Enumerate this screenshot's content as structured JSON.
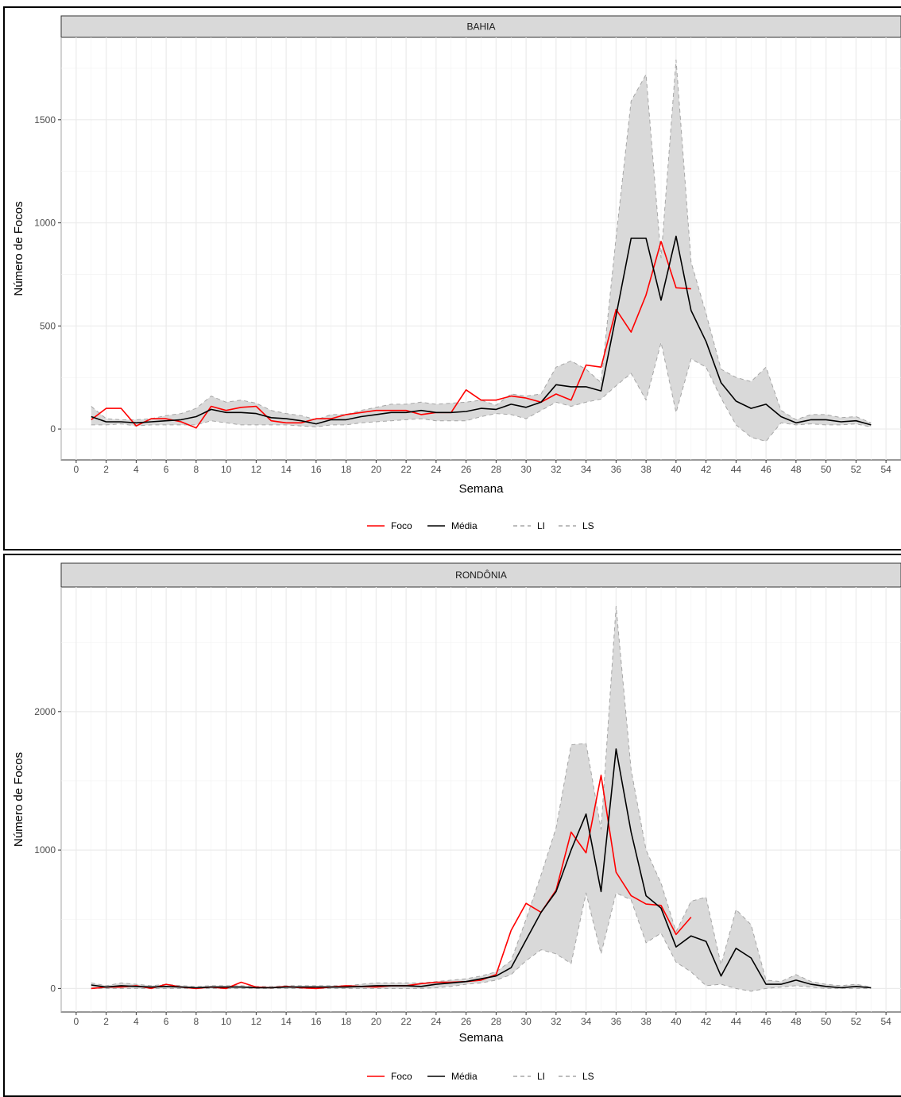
{
  "chart_data": [
    {
      "type": "line",
      "title": "BAHIA",
      "xlabel": "Semana",
      "ylabel": "Número de Focos",
      "xlim": [
        -1,
        55
      ],
      "ylim": [
        -150,
        1900
      ],
      "x_ticks": [
        0,
        2,
        4,
        6,
        8,
        10,
        12,
        14,
        16,
        18,
        20,
        22,
        24,
        26,
        28,
        30,
        32,
        34,
        36,
        38,
        40,
        42,
        44,
        46,
        48,
        50,
        52,
        54
      ],
      "y_ticks": [
        0,
        500,
        1000,
        1500
      ],
      "grid": true,
      "legend_position": "bottom",
      "legend": [
        "Foco",
        "Média",
        "LI",
        "LS"
      ],
      "colors": {
        "Foco": "#ff0000",
        "Média": "#000000",
        "band": "#d9d9d9",
        "band_line": "#a6a6a6"
      },
      "series": [
        {
          "name": "Foco",
          "x": [
            1,
            2,
            3,
            4,
            5,
            6,
            7,
            8,
            9,
            10,
            11,
            12,
            13,
            14,
            15,
            16,
            17,
            18,
            19,
            20,
            21,
            22,
            23,
            24,
            25,
            26,
            27,
            28,
            29,
            30,
            31,
            32,
            33,
            34,
            35,
            36,
            37,
            38,
            39,
            40,
            41
          ],
          "values": [
            45,
            100,
            100,
            15,
            50,
            50,
            35,
            5,
            110,
            90,
            105,
            110,
            40,
            30,
            30,
            50,
            50,
            70,
            80,
            90,
            90,
            90,
            70,
            80,
            80,
            190,
            140,
            140,
            160,
            150,
            130,
            170,
            140,
            310,
            300,
            580,
            470,
            650,
            910,
            685,
            680
          ]
        },
        {
          "name": "Média",
          "x": [
            1,
            2,
            3,
            4,
            5,
            6,
            7,
            8,
            9,
            10,
            11,
            12,
            13,
            14,
            15,
            16,
            17,
            18,
            19,
            20,
            21,
            22,
            23,
            24,
            25,
            26,
            27,
            28,
            29,
            30,
            31,
            32,
            33,
            34,
            35,
            36,
            37,
            38,
            39,
            40,
            41,
            42,
            43,
            44,
            45,
            46,
            47,
            48,
            49,
            50,
            51,
            52,
            53
          ],
          "values": [
            60,
            35,
            35,
            30,
            35,
            40,
            45,
            60,
            95,
            80,
            80,
            75,
            55,
            50,
            40,
            25,
            45,
            45,
            60,
            70,
            80,
            80,
            90,
            80,
            80,
            85,
            100,
            95,
            120,
            105,
            130,
            215,
            205,
            205,
            185,
            550,
            925,
            925,
            625,
            935,
            575,
            425,
            225,
            135,
            100,
            120,
            60,
            30,
            45,
            45,
            35,
            40,
            20
          ]
        },
        {
          "name": "LI",
          "x": [
            1,
            2,
            3,
            4,
            5,
            6,
            7,
            8,
            9,
            10,
            11,
            12,
            13,
            14,
            15,
            16,
            17,
            18,
            19,
            20,
            21,
            22,
            23,
            24,
            25,
            26,
            27,
            28,
            29,
            30,
            31,
            32,
            33,
            34,
            35,
            36,
            37,
            38,
            39,
            40,
            41,
            42,
            43,
            44,
            45,
            46,
            47,
            48,
            49,
            50,
            51,
            52,
            53
          ],
          "values": [
            20,
            20,
            25,
            15,
            20,
            20,
            20,
            20,
            40,
            30,
            20,
            20,
            20,
            20,
            15,
            10,
            20,
            20,
            30,
            35,
            40,
            45,
            50,
            40,
            40,
            40,
            60,
            75,
            70,
            50,
            90,
            130,
            110,
            130,
            145,
            210,
            270,
            140,
            420,
            80,
            340,
            300,
            150,
            20,
            -40,
            -60,
            30,
            20,
            25,
            20,
            20,
            25,
            10
          ]
        },
        {
          "name": "LS",
          "x": [
            1,
            2,
            3,
            4,
            5,
            6,
            7,
            8,
            9,
            10,
            11,
            12,
            13,
            14,
            15,
            16,
            17,
            18,
            19,
            20,
            21,
            22,
            23,
            24,
            25,
            26,
            27,
            28,
            29,
            30,
            31,
            32,
            33,
            34,
            35,
            36,
            37,
            38,
            39,
            40,
            41,
            42,
            43,
            44,
            45,
            46,
            47,
            48,
            49,
            50,
            51,
            52,
            53
          ],
          "values": [
            110,
            50,
            45,
            45,
            50,
            65,
            75,
            100,
            160,
            130,
            140,
            125,
            90,
            75,
            65,
            45,
            70,
            70,
            90,
            105,
            120,
            120,
            130,
            120,
            125,
            130,
            140,
            115,
            170,
            160,
            170,
            300,
            330,
            290,
            225,
            930,
            1590,
            1720,
            830,
            1790,
            810,
            560,
            290,
            250,
            230,
            300,
            90,
            45,
            70,
            70,
            55,
            60,
            30
          ]
        }
      ]
    },
    {
      "type": "line",
      "title": "RONDÔNIA",
      "xlabel": "Semana",
      "ylabel": "Número de Focos",
      "xlim": [
        -1,
        55
      ],
      "ylim": [
        -170,
        2900
      ],
      "x_ticks": [
        0,
        2,
        4,
        6,
        8,
        10,
        12,
        14,
        16,
        18,
        20,
        22,
        24,
        26,
        28,
        30,
        32,
        34,
        36,
        38,
        40,
        42,
        44,
        46,
        48,
        50,
        52,
        54
      ],
      "y_ticks": [
        0,
        1000,
        2000
      ],
      "grid": true,
      "legend_position": "bottom",
      "legend": [
        "Foco",
        "Média",
        "LI",
        "LS"
      ],
      "colors": {
        "Foco": "#ff0000",
        "Média": "#000000",
        "band": "#d9d9d9",
        "band_line": "#a6a6a6"
      },
      "series": [
        {
          "name": "Foco",
          "x": [
            1,
            2,
            3,
            4,
            5,
            6,
            7,
            8,
            9,
            10,
            11,
            12,
            13,
            14,
            15,
            16,
            17,
            18,
            19,
            20,
            21,
            22,
            23,
            24,
            25,
            26,
            27,
            28,
            29,
            30,
            31,
            32,
            33,
            34,
            35,
            36,
            37,
            38,
            39,
            40,
            41
          ],
          "values": [
            0,
            10,
            10,
            20,
            0,
            30,
            10,
            0,
            10,
            0,
            45,
            10,
            5,
            15,
            5,
            0,
            10,
            20,
            15,
            10,
            20,
            20,
            35,
            45,
            45,
            50,
            60,
            100,
            420,
            615,
            550,
            710,
            1130,
            980,
            1540,
            840,
            670,
            610,
            600,
            390,
            515
          ]
        },
        {
          "name": "Média",
          "x": [
            1,
            2,
            3,
            4,
            5,
            6,
            7,
            8,
            9,
            10,
            11,
            12,
            13,
            14,
            15,
            16,
            17,
            18,
            19,
            20,
            21,
            22,
            23,
            24,
            25,
            26,
            27,
            28,
            29,
            30,
            31,
            32,
            33,
            34,
            35,
            36,
            37,
            38,
            39,
            40,
            41,
            42,
            43,
            44,
            45,
            46,
            47,
            48,
            49,
            50,
            51,
            52,
            53
          ],
          "values": [
            25,
            10,
            20,
            15,
            10,
            15,
            10,
            5,
            10,
            10,
            10,
            5,
            5,
            10,
            10,
            10,
            10,
            10,
            15,
            20,
            20,
            20,
            15,
            30,
            40,
            50,
            70,
            90,
            150,
            350,
            550,
            700,
            1000,
            1260,
            700,
            1730,
            1130,
            670,
            580,
            300,
            380,
            340,
            90,
            290,
            220,
            30,
            30,
            60,
            30,
            15,
            5,
            15,
            5
          ]
        },
        {
          "name": "LI",
          "x": [
            1,
            2,
            3,
            4,
            5,
            6,
            7,
            8,
            9,
            10,
            11,
            12,
            13,
            14,
            15,
            16,
            17,
            18,
            19,
            20,
            21,
            22,
            23,
            24,
            25,
            26,
            27,
            28,
            29,
            30,
            31,
            32,
            33,
            34,
            35,
            36,
            37,
            38,
            39,
            40,
            41,
            42,
            43,
            44,
            45,
            46,
            47,
            48,
            49,
            50,
            51,
            52,
            53
          ],
          "values": [
            0,
            0,
            0,
            0,
            0,
            0,
            0,
            0,
            0,
            0,
            0,
            0,
            0,
            0,
            0,
            0,
            0,
            0,
            0,
            0,
            0,
            0,
            0,
            5,
            15,
            30,
            40,
            60,
            100,
            200,
            280,
            250,
            180,
            690,
            250,
            690,
            640,
            330,
            400,
            190,
            120,
            20,
            30,
            0,
            -20,
            0,
            10,
            20,
            10,
            0,
            0,
            0,
            0
          ]
        },
        {
          "name": "LS",
          "x": [
            1,
            2,
            3,
            4,
            5,
            6,
            7,
            8,
            9,
            10,
            11,
            12,
            13,
            14,
            15,
            16,
            17,
            18,
            19,
            20,
            21,
            22,
            23,
            24,
            25,
            26,
            27,
            28,
            29,
            30,
            31,
            32,
            33,
            34,
            35,
            36,
            37,
            38,
            39,
            40,
            41,
            42,
            43,
            44,
            45,
            46,
            47,
            48,
            49,
            50,
            51,
            52,
            53
          ],
          "values": [
            40,
            20,
            40,
            30,
            20,
            30,
            20,
            15,
            20,
            20,
            20,
            15,
            15,
            20,
            20,
            20,
            20,
            20,
            30,
            40,
            40,
            40,
            40,
            50,
            60,
            70,
            90,
            120,
            200,
            500,
            820,
            1160,
            1760,
            1770,
            1150,
            2760,
            1580,
            1000,
            760,
            410,
            630,
            660,
            170,
            570,
            460,
            60,
            50,
            100,
            50,
            30,
            20,
            30,
            10
          ]
        }
      ]
    }
  ]
}
